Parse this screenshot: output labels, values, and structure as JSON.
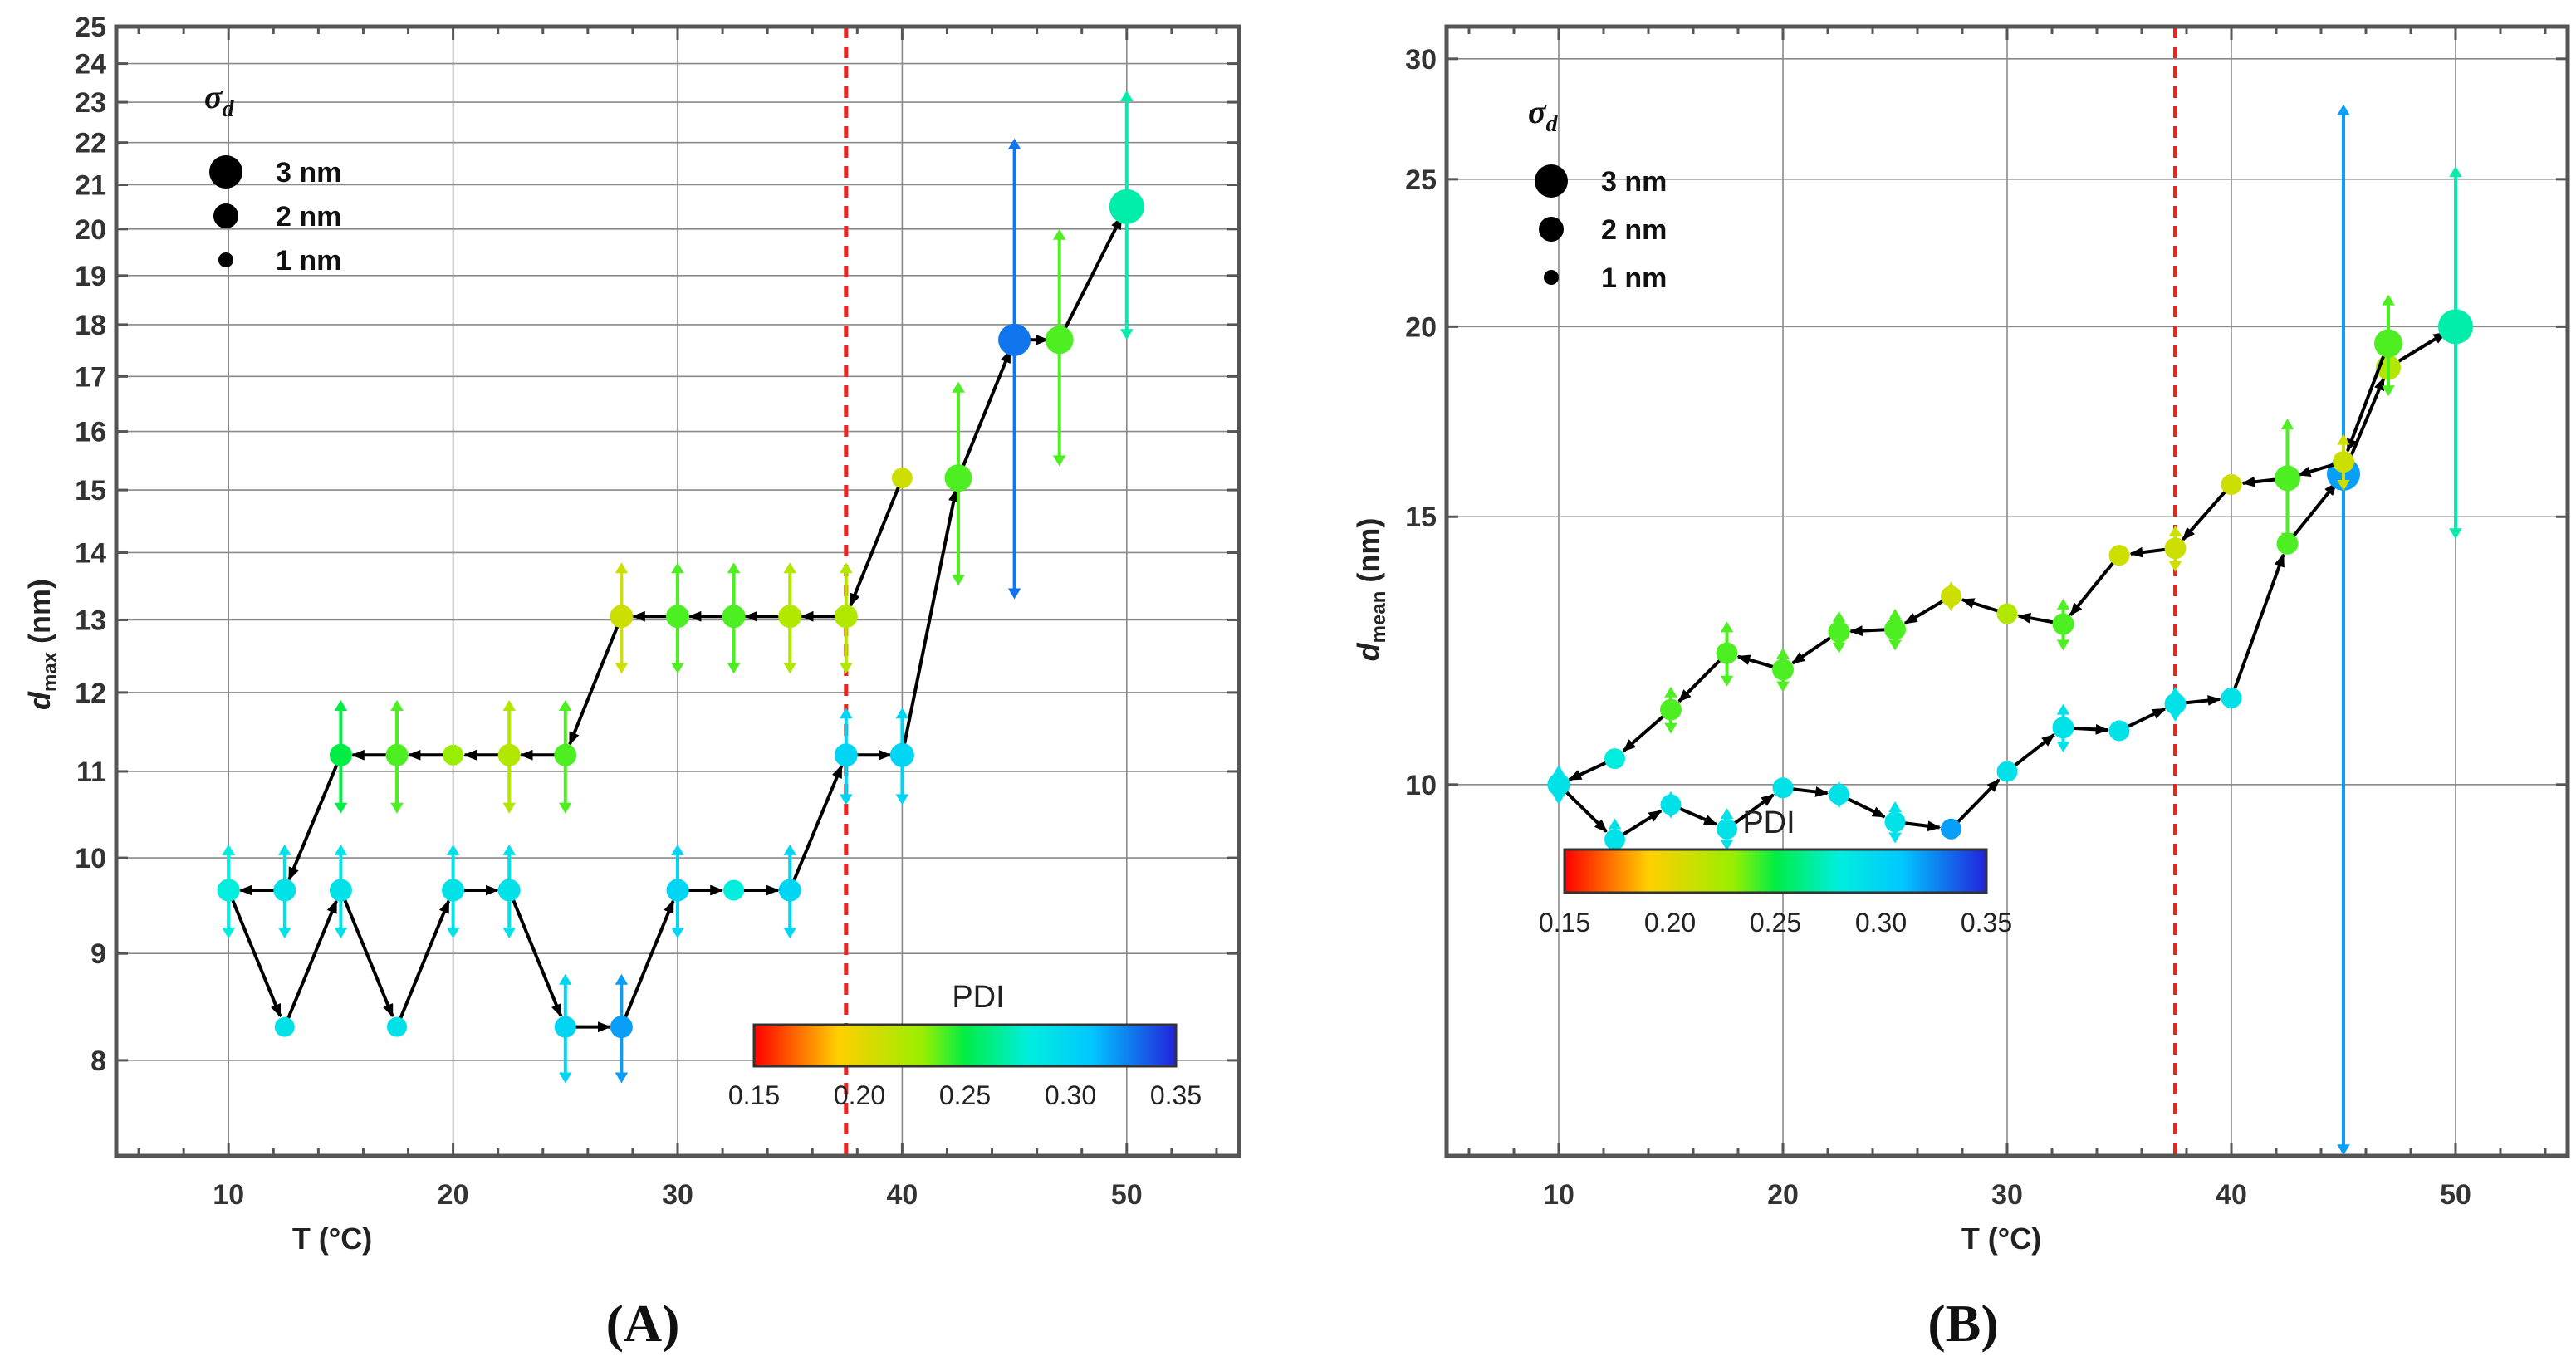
{
  "colorbar": {
    "title": "PDI",
    "min": 0.15,
    "max": 0.35,
    "tick_labels": [
      "0.15",
      "0.20",
      "0.25",
      "0.30",
      "0.35"
    ]
  },
  "legend": {
    "title_main": "σ",
    "title_sub": "d",
    "entries": [
      "3 nm",
      "2 nm",
      "1 nm"
    ]
  },
  "chart_data": [
    {
      "panel_label": "(A)",
      "type": "scatter",
      "title": "",
      "xlabel": "T (°C)",
      "ylabel_main": "d",
      "ylabel_sub": "max",
      "ylabel_unit": " (nm)",
      "yscale": "log",
      "xlim": [
        5,
        55
      ],
      "ylim": [
        7.2,
        25
      ],
      "xticks": [
        10,
        20,
        30,
        40,
        50
      ],
      "yticks": [
        8,
        9,
        10,
        11,
        12,
        13,
        14,
        15,
        16,
        17,
        18,
        19,
        20,
        21,
        22,
        23,
        24,
        25
      ],
      "threshold_x": 37.5,
      "legend_location": "top-left",
      "colorbar_location": "bottom-right",
      "series": [
        {
          "name": "heating",
          "points": [
            {
              "x": 10,
              "y": 9.65,
              "err": 0.5,
              "pdi": 0.29,
              "sigma": 1.5
            },
            {
              "x": 12.5,
              "y": 8.3,
              "err": 0,
              "pdi": 0.29,
              "sigma": 1.2
            },
            {
              "x": 15,
              "y": 9.65,
              "err": 0.5,
              "pdi": 0.29,
              "sigma": 1.5
            },
            {
              "x": 17.5,
              "y": 8.3,
              "err": 0,
              "pdi": 0.29,
              "sigma": 1.2
            },
            {
              "x": 20,
              "y": 9.65,
              "err": 0.5,
              "pdi": 0.29,
              "sigma": 1.5
            },
            {
              "x": 22.5,
              "y": 9.65,
              "err": 0.5,
              "pdi": 0.29,
              "sigma": 1.5
            },
            {
              "x": 25,
              "y": 8.3,
              "err": 0.5,
              "pdi": 0.3,
              "sigma": 1.4
            },
            {
              "x": 27.5,
              "y": 8.3,
              "err": 0.5,
              "pdi": 0.32,
              "sigma": 1.5
            },
            {
              "x": 30,
              "y": 9.65,
              "err": 0.5,
              "pdi": 0.3,
              "sigma": 1.5
            },
            {
              "x": 32.5,
              "y": 9.65,
              "err": 0,
              "pdi": 0.28,
              "sigma": 1.3
            },
            {
              "x": 35,
              "y": 9.65,
              "err": 0.5,
              "pdi": 0.3,
              "sigma": 1.5
            },
            {
              "x": 37.5,
              "y": 11.2,
              "err": 0.6,
              "pdi": 0.3,
              "sigma": 1.6
            },
            {
              "x": 40,
              "y": 11.2,
              "err": 0.6,
              "pdi": 0.3,
              "sigma": 1.7
            },
            {
              "x": 42.5,
              "y": 15.2,
              "err": 1.7,
              "pdi": 0.24,
              "sigma": 2.1
            },
            {
              "x": 45,
              "y": 17.7,
              "err": 4.4,
              "pdi": 0.33,
              "sigma": 2.7
            },
            {
              "x": 47,
              "y": 17.7,
              "err": 2.3,
              "pdi": 0.24,
              "sigma": 2.2
            },
            {
              "x": 50,
              "y": 20.5,
              "err": 2.8,
              "pdi": 0.27,
              "sigma": 3.0
            }
          ]
        },
        {
          "name": "cooling",
          "points": [
            {
              "x": 40,
              "y": 15.2,
              "err": 0,
              "pdi": 0.21,
              "sigma": 1.3
            },
            {
              "x": 37.5,
              "y": 13.05,
              "err": 0.8,
              "pdi": 0.22,
              "sigma": 1.6
            },
            {
              "x": 35,
              "y": 13.05,
              "err": 0.8,
              "pdi": 0.22,
              "sigma": 1.6
            },
            {
              "x": 32.5,
              "y": 13.05,
              "err": 0.8,
              "pdi": 0.24,
              "sigma": 1.6
            },
            {
              "x": 30,
              "y": 13.05,
              "err": 0.8,
              "pdi": 0.24,
              "sigma": 1.6
            },
            {
              "x": 27.5,
              "y": 13.05,
              "err": 0.8,
              "pdi": 0.21,
              "sigma": 1.6
            },
            {
              "x": 25,
              "y": 11.2,
              "err": 0.7,
              "pdi": 0.24,
              "sigma": 1.5
            },
            {
              "x": 22.5,
              "y": 11.2,
              "err": 0.7,
              "pdi": 0.22,
              "sigma": 1.5
            },
            {
              "x": 20,
              "y": 11.2,
              "err": 0,
              "pdi": 0.23,
              "sigma": 1.3
            },
            {
              "x": 17.5,
              "y": 11.2,
              "err": 0.7,
              "pdi": 0.24,
              "sigma": 1.5
            },
            {
              "x": 15,
              "y": 11.2,
              "err": 0.7,
              "pdi": 0.25,
              "sigma": 1.5
            },
            {
              "x": 12.5,
              "y": 9.65,
              "err": 0.5,
              "pdi": 0.29,
              "sigma": 1.5
            },
            {
              "x": 10,
              "y": 9.65,
              "err": 0.5,
              "pdi": 0.28,
              "sigma": 1.5
            }
          ]
        }
      ]
    },
    {
      "panel_label": "(B)",
      "type": "scatter",
      "title": "",
      "xlabel": "T (°C)",
      "ylabel_main": "d",
      "ylabel_sub": "mean",
      "ylabel_unit": " (nm)",
      "yscale": "log",
      "xlim": [
        5,
        55
      ],
      "ylim": [
        5.7,
        31.5
      ],
      "xticks": [
        10,
        20,
        30,
        40,
        50
      ],
      "yticks": [
        10,
        15,
        20,
        25,
        30
      ],
      "threshold_x": 37.5,
      "legend_location": "top-left",
      "colorbar_location": "center-left",
      "series": [
        {
          "name": "heating",
          "points": [
            {
              "x": 10,
              "y": 10.0,
              "err": 0.3,
              "pdi": 0.29,
              "sigma": 1.5
            },
            {
              "x": 12.5,
              "y": 9.2,
              "err": 0.3,
              "pdi": 0.29,
              "sigma": 1.3
            },
            {
              "x": 15,
              "y": 9.7,
              "err": 0.2,
              "pdi": 0.29,
              "sigma": 1.3
            },
            {
              "x": 17.5,
              "y": 9.35,
              "err": 0.3,
              "pdi": 0.29,
              "sigma": 1.3
            },
            {
              "x": 20,
              "y": 9.95,
              "err": 0,
              "pdi": 0.29,
              "sigma": 1.3
            },
            {
              "x": 22.5,
              "y": 9.85,
              "err": 0.2,
              "pdi": 0.29,
              "sigma": 1.3
            },
            {
              "x": 25,
              "y": 9.45,
              "err": 0.3,
              "pdi": 0.29,
              "sigma": 1.3
            },
            {
              "x": 27.5,
              "y": 9.35,
              "err": 0,
              "pdi": 0.32,
              "sigma": 1.3
            },
            {
              "x": 30,
              "y": 10.2,
              "err": 0,
              "pdi": 0.29,
              "sigma": 1.3
            },
            {
              "x": 32.5,
              "y": 10.9,
              "err": 0.4,
              "pdi": 0.29,
              "sigma": 1.4
            },
            {
              "x": 35,
              "y": 10.85,
              "err": 0,
              "pdi": 0.29,
              "sigma": 1.3
            },
            {
              "x": 37.5,
              "y": 11.3,
              "err": 0.3,
              "pdi": 0.29,
              "sigma": 1.4
            },
            {
              "x": 40,
              "y": 11.4,
              "err": 0,
              "pdi": 0.29,
              "sigma": 1.3
            },
            {
              "x": 42.5,
              "y": 14.4,
              "err": 0,
              "pdi": 0.24,
              "sigma": 1.4
            },
            {
              "x": 45,
              "y": 16.0,
              "err": 12.0,
              "pdi": 0.32,
              "sigma": 2.8
            },
            {
              "x": 47,
              "y": 18.8,
              "err": 0,
              "pdi": 0.22,
              "sigma": 1.8
            },
            {
              "x": 50,
              "y": 20.0,
              "err": 5.5,
              "pdi": 0.27,
              "sigma": 3.0
            }
          ]
        },
        {
          "name": "cooling",
          "points": [
            {
              "x": 47,
              "y": 19.5,
              "err": 1.5,
              "pdi": 0.24,
              "sigma": 2.2
            },
            {
              "x": 45,
              "y": 16.3,
              "err": 0.7,
              "pdi": 0.21,
              "sigma": 1.4
            },
            {
              "x": 42.5,
              "y": 15.9,
              "err": 1.5,
              "pdi": 0.24,
              "sigma": 1.9
            },
            {
              "x": 40,
              "y": 15.75,
              "err": 0,
              "pdi": 0.21,
              "sigma": 1.3
            },
            {
              "x": 37.5,
              "y": 14.3,
              "err": 0.5,
              "pdi": 0.21,
              "sigma": 1.4
            },
            {
              "x": 35,
              "y": 14.15,
              "err": 0,
              "pdi": 0.21,
              "sigma": 1.3
            },
            {
              "x": 32.5,
              "y": 12.75,
              "err": 0.5,
              "pdi": 0.24,
              "sigma": 1.4
            },
            {
              "x": 30,
              "y": 12.95,
              "err": 0,
              "pdi": 0.22,
              "sigma": 1.3
            },
            {
              "x": 27.5,
              "y": 13.3,
              "err": 0.3,
              "pdi": 0.21,
              "sigma": 1.3
            },
            {
              "x": 25,
              "y": 12.65,
              "err": 0.4,
              "pdi": 0.24,
              "sigma": 1.4
            },
            {
              "x": 22.5,
              "y": 12.6,
              "err": 0.4,
              "pdi": 0.24,
              "sigma": 1.4
            },
            {
              "x": 20,
              "y": 11.9,
              "err": 0.4,
              "pdi": 0.24,
              "sigma": 1.4
            },
            {
              "x": 17.5,
              "y": 12.2,
              "err": 0.6,
              "pdi": 0.24,
              "sigma": 1.4
            },
            {
              "x": 15,
              "y": 11.2,
              "err": 0.4,
              "pdi": 0.24,
              "sigma": 1.4
            },
            {
              "x": 12.5,
              "y": 10.4,
              "err": 0,
              "pdi": 0.28,
              "sigma": 1.3
            },
            {
              "x": 10,
              "y": 10.0,
              "err": 0,
              "pdi": 0.29,
              "sigma": 1.5
            }
          ]
        }
      ]
    }
  ]
}
